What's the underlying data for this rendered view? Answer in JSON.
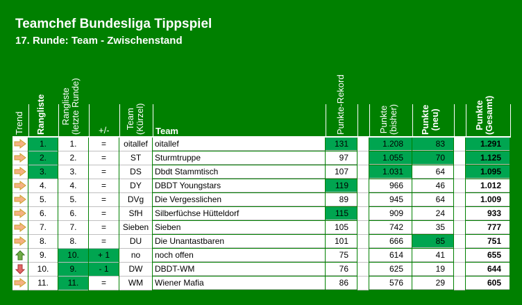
{
  "header": {
    "title": "Teamchef Bundesliga Tippspiel",
    "subtitle": "17. Runde: Team - Zwischenstand"
  },
  "columns": {
    "trend": "Trend",
    "rangliste": "Rangliste",
    "rangliste_last_1": "Rangliste",
    "rangliste_last_2": "(letzte Runde)",
    "plusminus": "+/-",
    "team_short_1": "Team",
    "team_short_2": "(Kürzel)",
    "team": "Team",
    "rekord": "Punkte-Rekord",
    "bisher_1": "Punkte",
    "bisher_2": "(bisher)",
    "neu_1": "Punkte",
    "neu_2": "(neu)",
    "gesamt_1": "Punkte",
    "gesamt_2": "(Gesamt)"
  },
  "rows": [
    {
      "trend": "same",
      "rank": "1.",
      "last": "1.",
      "diff": "=",
      "short": "oitallef",
      "team": "oitallef",
      "rekord": "131",
      "bisher": "1.208",
      "neu": "83",
      "gesamt": "1.291",
      "rank_hl": true,
      "last_hl": false,
      "diff_hl": false,
      "rekord_hl": true,
      "bisher_hl": true,
      "neu_hl": true,
      "gesamt_hl": true
    },
    {
      "trend": "same",
      "rank": "2.",
      "last": "2.",
      "diff": "=",
      "short": "ST",
      "team": "Sturmtruppe",
      "rekord": "97",
      "bisher": "1.055",
      "neu": "70",
      "gesamt": "1.125",
      "rank_hl": true,
      "last_hl": false,
      "diff_hl": false,
      "rekord_hl": false,
      "bisher_hl": true,
      "neu_hl": true,
      "gesamt_hl": true
    },
    {
      "trend": "same",
      "rank": "3.",
      "last": "3.",
      "diff": "=",
      "short": "DS",
      "team": "Dbdt Stammtisch",
      "rekord": "107",
      "bisher": "1.031",
      "neu": "64",
      "gesamt": "1.095",
      "rank_hl": true,
      "last_hl": false,
      "diff_hl": false,
      "rekord_hl": false,
      "bisher_hl": true,
      "neu_hl": false,
      "gesamt_hl": true
    },
    {
      "trend": "same",
      "rank": "4.",
      "last": "4.",
      "diff": "=",
      "short": "DY",
      "team": "DBDT Youngstars",
      "rekord": "119",
      "bisher": "966",
      "neu": "46",
      "gesamt": "1.012",
      "rank_hl": false,
      "last_hl": false,
      "diff_hl": false,
      "rekord_hl": true,
      "bisher_hl": false,
      "neu_hl": false,
      "gesamt_hl": false
    },
    {
      "trend": "same",
      "rank": "5.",
      "last": "5.",
      "diff": "=",
      "short": "DVg",
      "team": "Die Vergesslichen",
      "rekord": "89",
      "bisher": "945",
      "neu": "64",
      "gesamt": "1.009",
      "rank_hl": false,
      "last_hl": false,
      "diff_hl": false,
      "rekord_hl": false,
      "bisher_hl": false,
      "neu_hl": false,
      "gesamt_hl": false
    },
    {
      "trend": "same",
      "rank": "6.",
      "last": "6.",
      "diff": "=",
      "short": "SfH",
      "team": "Silberfüchse Hütteldorf",
      "rekord": "115",
      "bisher": "909",
      "neu": "24",
      "gesamt": "933",
      "rank_hl": false,
      "last_hl": false,
      "diff_hl": false,
      "rekord_hl": true,
      "bisher_hl": false,
      "neu_hl": false,
      "gesamt_hl": false
    },
    {
      "trend": "same",
      "rank": "7.",
      "last": "7.",
      "diff": "=",
      "short": "Sieben",
      "team": "Sieben",
      "rekord": "105",
      "bisher": "742",
      "neu": "35",
      "gesamt": "777",
      "rank_hl": false,
      "last_hl": false,
      "diff_hl": false,
      "rekord_hl": false,
      "bisher_hl": false,
      "neu_hl": false,
      "gesamt_hl": false
    },
    {
      "trend": "same",
      "rank": "8.",
      "last": "8.",
      "diff": "=",
      "short": "DU",
      "team": "Die Unantastbaren",
      "rekord": "101",
      "bisher": "666",
      "neu": "85",
      "gesamt": "751",
      "rank_hl": false,
      "last_hl": false,
      "diff_hl": false,
      "rekord_hl": false,
      "bisher_hl": false,
      "neu_hl": true,
      "gesamt_hl": false
    },
    {
      "trend": "up",
      "rank": "9.",
      "last": "10.",
      "diff": "+ 1",
      "short": "no",
      "team": "noch offen",
      "rekord": "75",
      "bisher": "614",
      "neu": "41",
      "gesamt": "655",
      "rank_hl": false,
      "last_hl": true,
      "diff_hl": true,
      "rekord_hl": false,
      "bisher_hl": false,
      "neu_hl": false,
      "gesamt_hl": false
    },
    {
      "trend": "down",
      "rank": "10.",
      "last": "9.",
      "diff": "- 1",
      "short": "DW",
      "team": "DBDT-WM",
      "rekord": "76",
      "bisher": "625",
      "neu": "19",
      "gesamt": "644",
      "rank_hl": false,
      "last_hl": true,
      "diff_hl": true,
      "rekord_hl": false,
      "bisher_hl": false,
      "neu_hl": false,
      "gesamt_hl": false
    },
    {
      "trend": "same",
      "rank": "11.",
      "last": "11.",
      "diff": "=",
      "short": "WM",
      "team": "Wiener Mafia",
      "rekord": "86",
      "bisher": "576",
      "neu": "29",
      "gesamt": "605",
      "rank_hl": false,
      "last_hl": true,
      "diff_hl": false,
      "rekord_hl": false,
      "bisher_hl": false,
      "neu_hl": false,
      "gesamt_hl": false
    }
  ],
  "colors": {
    "background": "#008000",
    "highlight": "#00a550",
    "arrow_same": "#f4b183",
    "arrow_up": "#70ad47",
    "arrow_down": "#e06666"
  },
  "icons": {
    "same": "arrow-right-icon",
    "up": "arrow-up-icon",
    "down": "arrow-down-icon"
  }
}
